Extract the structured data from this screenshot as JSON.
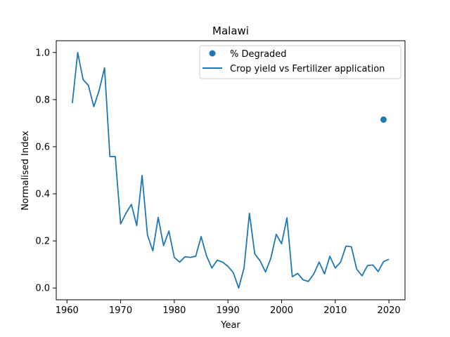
{
  "chart_data": {
    "type": "line",
    "title": "Malawi",
    "xlabel": "Year",
    "ylabel": "Normalised Index",
    "xlim": [
      1958,
      2023
    ],
    "ylim": [
      -0.05,
      1.05
    ],
    "xticks": [
      1960,
      1970,
      1980,
      1990,
      2000,
      2010,
      2020
    ],
    "yticks": [
      0.0,
      0.2,
      0.4,
      0.6,
      0.8,
      1.0
    ],
    "ytick_labels": [
      "0.0",
      "0.2",
      "0.4",
      "0.6",
      "0.8",
      "1.0"
    ],
    "grid": false,
    "legend_position": "upper right",
    "colors": {
      "series": "#1f77b4"
    },
    "series": [
      {
        "name": "Crop yield vs Fertilizer application",
        "type": "line",
        "x": [
          1961,
          1962,
          1963,
          1964,
          1965,
          1966,
          1967,
          1968,
          1969,
          1970,
          1971,
          1972,
          1973,
          1974,
          1975,
          1976,
          1977,
          1978,
          1979,
          1980,
          1981,
          1982,
          1983,
          1984,
          1985,
          1986,
          1987,
          1988,
          1989,
          1990,
          1991,
          1992,
          1993,
          1994,
          1995,
          1996,
          1997,
          1998,
          1999,
          2000,
          2001,
          2002,
          2003,
          2004,
          2005,
          2006,
          2007,
          2008,
          2009,
          2010,
          2011,
          2012,
          2013,
          2014,
          2015,
          2016,
          2017,
          2018,
          2019,
          2020
        ],
        "values": [
          0.785,
          1.0,
          0.885,
          0.86,
          0.77,
          0.84,
          0.935,
          0.558,
          0.558,
          0.272,
          0.318,
          0.355,
          0.265,
          0.478,
          0.225,
          0.158,
          0.3,
          0.18,
          0.242,
          0.13,
          0.11,
          0.133,
          0.13,
          0.135,
          0.218,
          0.137,
          0.085,
          0.118,
          0.11,
          0.092,
          0.065,
          0.0,
          0.085,
          0.317,
          0.145,
          0.115,
          0.068,
          0.127,
          0.228,
          0.188,
          0.298,
          0.048,
          0.062,
          0.035,
          0.028,
          0.06,
          0.11,
          0.06,
          0.135,
          0.085,
          0.11,
          0.178,
          0.175,
          0.08,
          0.052,
          0.095,
          0.098,
          0.07,
          0.112,
          0.122
        ]
      },
      {
        "name": "% Degraded",
        "type": "scatter",
        "x": [
          2019
        ],
        "values": [
          0.715
        ]
      }
    ]
  }
}
